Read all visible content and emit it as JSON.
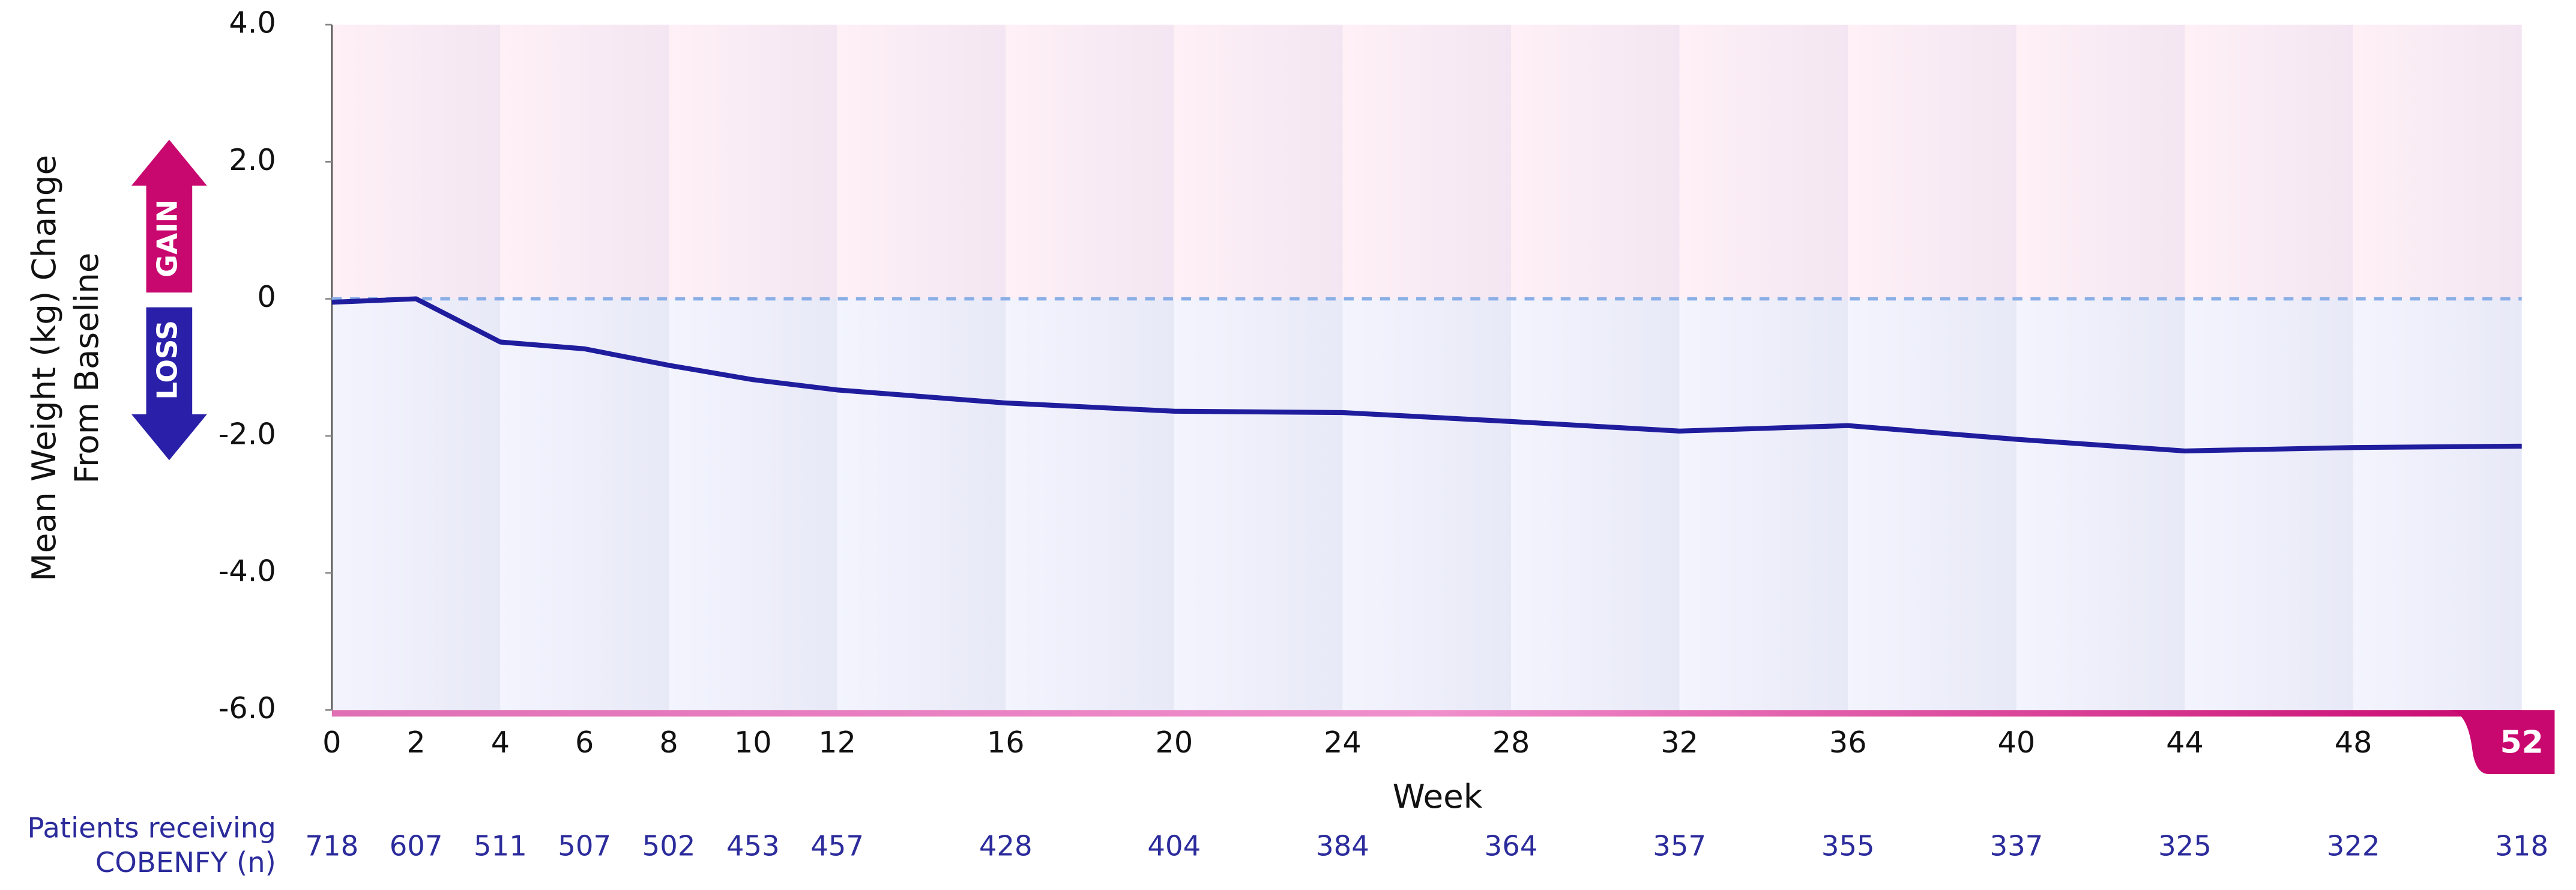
{
  "chart_data": {
    "type": "line",
    "y_label": [
      "Mean Weight (kg) Change",
      "From Baseline"
    ],
    "x_label": "Week",
    "gain_label": "GAIN",
    "loss_label": "LOSS",
    "x": [
      0,
      2,
      4,
      6,
      8,
      10,
      12,
      16,
      20,
      24,
      28,
      32,
      36,
      40,
      44,
      48,
      52
    ],
    "values": [
      -0.05,
      0.0,
      -0.63,
      -0.73,
      -0.97,
      -1.18,
      -1.33,
      -1.52,
      -1.64,
      -1.66,
      -1.79,
      -1.93,
      -1.85,
      -2.05,
      -2.22,
      -2.17,
      -2.15
    ],
    "color": "#1f1d9e",
    "xlim": [
      0,
      52
    ],
    "xticks": [
      0,
      2,
      4,
      6,
      8,
      10,
      12,
      16,
      20,
      24,
      28,
      32,
      36,
      40,
      44,
      48,
      52
    ],
    "ylim": [
      -6,
      4
    ],
    "yticks": [
      {
        "value": 4,
        "label": "4.0"
      },
      {
        "value": 2,
        "label": "2.0"
      },
      0,
      {
        "value": -2,
        "label": "-2.0"
      },
      {
        "value": -4,
        "label": "-4.0"
      },
      {
        "value": -6,
        "label": "-6.0"
      }
    ],
    "reference_line": 0,
    "patients": {
      "label": [
        "Patients receiving",
        "COBENFY (n)"
      ],
      "values": [
        718,
        607,
        511,
        507,
        502,
        453,
        457,
        428,
        404,
        384,
        364,
        357,
        355,
        337,
        325,
        322,
        318
      ]
    }
  }
}
